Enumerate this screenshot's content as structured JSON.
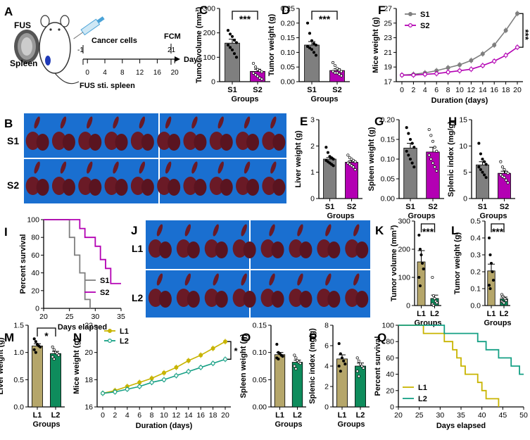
{
  "panel_letters": [
    "A",
    "B",
    "C",
    "D",
    "E",
    "F",
    "G",
    "H",
    "I",
    "J",
    "K",
    "L",
    "M",
    "N",
    "O",
    "P",
    "Q"
  ],
  "colors": {
    "S1": "#7f7f7f",
    "S2": "#b300b3",
    "L1": "#b5a66a",
    "L2": "#0e8c5c",
    "L1_line": "#c8b400",
    "L2_line": "#16a085",
    "photo_blue": "#1a6fd0",
    "organ": "#6a1a26"
  },
  "schematic": {
    "fus": "FUS",
    "spleen": "Spleen",
    "cancer_cells": "Cancer cells",
    "fcm": "FCM",
    "minus_one": "-1",
    "twenty_one": "21",
    "ticks": [
      "0",
      "4",
      "8",
      "12",
      "16",
      "20"
    ],
    "days": "Days",
    "fus_sti": "FUS sti. spleen"
  },
  "photos": {
    "row_labels_top": [
      "S1",
      "S2"
    ],
    "row_labels_bottom": [
      "L1",
      "L2"
    ]
  },
  "chart_data": [
    {
      "panel": "C",
      "type": "bar",
      "ylabel": "Tumor volume (mm³)",
      "xlabel": "Groups",
      "categories": [
        "S1",
        "S2"
      ],
      "values": [
        158,
        42
      ],
      "errors": [
        16,
        9
      ],
      "ylim": [
        0,
        300
      ],
      "yticks": [
        "0",
        "100",
        "200",
        "300"
      ],
      "significance": "***",
      "points": [
        [
          210,
          195,
          185,
          170,
          160,
          150,
          140,
          130,
          115,
          100
        ],
        [
          75,
          60,
          50,
          45,
          40,
          35,
          28,
          22,
          15,
          10
        ]
      ]
    },
    {
      "panel": "D",
      "type": "bar",
      "ylabel": "Tumor weight (g)",
      "xlabel": "Groups",
      "categories": [
        "S1",
        "S2"
      ],
      "values": [
        0.125,
        0.038
      ],
      "errors": [
        0.012,
        0.006
      ],
      "ylim": [
        0,
        0.25
      ],
      "yticks": [
        "0.00",
        "0.05",
        "0.10",
        "0.15",
        "0.20",
        "0.25"
      ],
      "significance": "***",
      "points": [
        [
          0.2,
          0.165,
          0.14,
          0.13,
          0.125,
          0.12,
          0.115,
          0.11,
          0.1,
          0.09
        ],
        [
          0.065,
          0.055,
          0.045,
          0.04,
          0.035,
          0.035,
          0.03,
          0.03,
          0.025,
          0.02
        ]
      ]
    },
    {
      "panel": "F",
      "type": "line",
      "ylabel": "Mice weight (g)",
      "xlabel": "Duration (days)",
      "x": [
        0,
        2,
        4,
        6,
        8,
        10,
        12,
        14,
        16,
        18,
        20
      ],
      "xticks": [
        "0",
        "2",
        "4",
        "6",
        "8",
        "10",
        "12",
        "14",
        "16",
        "18",
        "20"
      ],
      "ylim": [
        17,
        27
      ],
      "yticks": [
        "17",
        "19",
        "21",
        "23",
        "25",
        "27"
      ],
      "series": [
        {
          "name": "S1",
          "values": [
            17.9,
            18.0,
            18.2,
            18.5,
            18.9,
            19.3,
            19.9,
            20.8,
            22.0,
            24.0,
            26.3
          ]
        },
        {
          "name": "S2",
          "values": [
            17.9,
            17.9,
            18.0,
            18.1,
            18.3,
            18.5,
            18.7,
            19.2,
            19.8,
            20.6,
            21.7
          ]
        }
      ],
      "significance": "***"
    },
    {
      "panel": "E",
      "type": "bar",
      "ylabel": "Liver weight (g)",
      "xlabel": "Groups",
      "categories": [
        "S1",
        "S2"
      ],
      "values": [
        1.5,
        1.38
      ],
      "errors": [
        0.06,
        0.05
      ],
      "ylim": [
        0,
        3
      ],
      "yticks": [
        "0",
        "1",
        "2",
        "3"
      ],
      "points": [
        [
          1.95,
          1.75,
          1.6,
          1.55,
          1.5,
          1.45,
          1.4,
          1.35,
          1.3,
          1.25
        ],
        [
          1.65,
          1.55,
          1.5,
          1.45,
          1.4,
          1.35,
          1.3,
          1.25,
          1.2,
          1.1
        ]
      ]
    },
    {
      "panel": "G",
      "type": "bar",
      "ylabel": "Spleen weight (g)",
      "xlabel": "Groups",
      "categories": [
        "S1",
        "S2"
      ],
      "values": [
        0.128,
        0.118
      ],
      "errors": [
        0.012,
        0.012
      ],
      "ylim": [
        0,
        0.2
      ],
      "yticks": [
        "0.00",
        "0.05",
        "0.10",
        "0.15",
        "0.20"
      ],
      "points": [
        [
          0.18,
          0.165,
          0.15,
          0.14,
          0.13,
          0.12,
          0.11,
          0.1,
          0.09,
          0.08
        ],
        [
          0.175,
          0.16,
          0.145,
          0.13,
          0.12,
          0.11,
          0.1,
          0.09,
          0.08,
          0.07
        ]
      ]
    },
    {
      "panel": "H",
      "type": "bar",
      "ylabel": "Splenic index (mg/g)",
      "xlabel": "Groups",
      "categories": [
        "S1",
        "S2"
      ],
      "values": [
        6.4,
        4.8
      ],
      "errors": [
        0.6,
        0.4
      ],
      "ylim": [
        0,
        15
      ],
      "yticks": [
        "0",
        "5",
        "10",
        "15"
      ],
      "points": [
        [
          10.5,
          8.5,
          7.5,
          7,
          6.5,
          6,
          5.5,
          5,
          4.5,
          4
        ],
        [
          7,
          6,
          5.5,
          5,
          4.8,
          4.5,
          4.2,
          4,
          3.5,
          3
        ]
      ]
    },
    {
      "panel": "I",
      "type": "line",
      "subtype": "survival",
      "ylabel": "Percent survival",
      "xlabel": "Days elapsed",
      "xlim": [
        20,
        35
      ],
      "xticks": [
        "20",
        "25",
        "30",
        "35"
      ],
      "ylim": [
        0,
        100
      ],
      "yticks": [
        "0",
        "20",
        "40",
        "60",
        "80",
        "100"
      ],
      "series": [
        {
          "name": "S1",
          "steps": [
            [
              20,
              100
            ],
            [
              25,
              100
            ],
            [
              25,
              80
            ],
            [
              26,
              80
            ],
            [
              26,
              60
            ],
            [
              27,
              60
            ],
            [
              27,
              40
            ],
            [
              28,
              40
            ],
            [
              28,
              10
            ],
            [
              29,
              10
            ],
            [
              29,
              0
            ]
          ]
        },
        {
          "name": "S2",
          "steps": [
            [
              20,
              100
            ],
            [
              27,
              100
            ],
            [
              27,
              90
            ],
            [
              28,
              90
            ],
            [
              28,
              80
            ],
            [
              30,
              80
            ],
            [
              30,
              70
            ],
            [
              31,
              70
            ],
            [
              31,
              55
            ],
            [
              32,
              55
            ],
            [
              32,
              45
            ],
            [
              33,
              45
            ],
            [
              33,
              28
            ],
            [
              35,
              28
            ]
          ]
        }
      ]
    },
    {
      "panel": "K",
      "type": "bar",
      "ylabel": "Tumor volume (mm³)",
      "xlabel": "Groups",
      "categories": [
        "L1",
        "L2"
      ],
      "values": [
        155,
        25
      ],
      "errors": [
        40,
        12
      ],
      "ylim": [
        0,
        300
      ],
      "yticks": [
        "0",
        "100",
        "200",
        "300"
      ],
      "significance": "***",
      "points": [
        [
          250,
          200,
          180,
          150,
          130,
          100,
          70
        ],
        [
          100,
          35,
          25,
          15,
          10,
          5,
          0
        ]
      ]
    },
    {
      "panel": "L",
      "type": "bar",
      "ylabel": "Tumor weight (g)",
      "xlabel": "Groups",
      "categories": [
        "L1",
        "L2"
      ],
      "values": [
        0.205,
        0.04
      ],
      "errors": [
        0.04,
        0.01
      ],
      "ylim": [
        0,
        0.5
      ],
      "yticks": [
        "0.0",
        "0.1",
        "0.2",
        "0.3",
        "0.4",
        "0.5"
      ],
      "significance": "***",
      "points": [
        [
          0.4,
          0.3,
          0.25,
          0.2,
          0.15,
          0.12,
          0.1
        ],
        [
          0.065,
          0.055,
          0.045,
          0.04,
          0.03,
          0.025,
          0.02,
          0.015
        ]
      ]
    },
    {
      "panel": "M",
      "type": "bar",
      "ylabel": "Liver weight (g)",
      "xlabel": "Groups",
      "categories": [
        "L1",
        "L2"
      ],
      "values": [
        1.12,
        0.98
      ],
      "errors": [
        0.04,
        0.04
      ],
      "ylim": [
        0,
        1.5
      ],
      "yticks": [
        "0.0",
        "0.5",
        "1.0",
        "1.5"
      ],
      "significance": "*",
      "points": [
        [
          1.25,
          1.2,
          1.15,
          1.12,
          1.1,
          1.05,
          1.0
        ],
        [
          1.1,
          1.05,
          1.0,
          0.98,
          0.95,
          0.92,
          0.88
        ]
      ]
    },
    {
      "panel": "N",
      "type": "line",
      "ylabel": "Mice weight (g)",
      "xlabel": "Duration (days)",
      "x": [
        0,
        2,
        4,
        6,
        8,
        10,
        12,
        14,
        16,
        18,
        20
      ],
      "xticks": [
        "0",
        "2",
        "4",
        "6",
        "8",
        "10",
        "12",
        "14",
        "16",
        "18",
        "20"
      ],
      "ylim": [
        16,
        22
      ],
      "yticks": [
        "16",
        "18",
        "20",
        "22"
      ],
      "series": [
        {
          "name": "L1",
          "values": [
            17.0,
            17.2,
            17.5,
            17.8,
            18.1,
            18.5,
            18.9,
            19.4,
            19.8,
            20.3,
            20.8
          ]
        },
        {
          "name": "L2",
          "values": [
            17.0,
            17.1,
            17.3,
            17.5,
            17.8,
            18.0,
            18.3,
            18.6,
            18.9,
            19.2,
            19.5
          ]
        }
      ],
      "significance": "*"
    },
    {
      "panel": "O",
      "type": "bar",
      "ylabel": "Spleen weight (g)",
      "xlabel": "Groups",
      "categories": [
        "L1",
        "L2"
      ],
      "values": [
        0.096,
        0.082
      ],
      "errors": [
        0.004,
        0.004
      ],
      "ylim": [
        0,
        0.15
      ],
      "yticks": [
        "0.00",
        "0.05",
        "0.10",
        "0.15"
      ],
      "points": [
        [
          0.115,
          0.1,
          0.098,
          0.095,
          0.093,
          0.09,
          0.088
        ],
        [
          0.095,
          0.09,
          0.085,
          0.082,
          0.08,
          0.075,
          0.07
        ]
      ]
    },
    {
      "panel": "P",
      "type": "bar",
      "ylabel": "Splenic index (mg/g)",
      "xlabel": "Groups",
      "categories": [
        "L1",
        "L2"
      ],
      "values": [
        4.7,
        4.0
      ],
      "errors": [
        0.4,
        0.3
      ],
      "ylim": [
        0,
        8
      ],
      "yticks": [
        "0",
        "2",
        "4",
        "6",
        "8"
      ],
      "points": [
        [
          6.2,
          5.2,
          4.8,
          4.5,
          4.2,
          4.0,
          3.5
        ],
        [
          4.8,
          4.5,
          4.2,
          4.0,
          3.8,
          3.5,
          3.0
        ]
      ]
    },
    {
      "panel": "Q",
      "type": "line",
      "subtype": "survival",
      "ylabel": "Percent survival",
      "xlabel": "Days elapsed",
      "xlim": [
        20,
        50
      ],
      "xticks": [
        "20",
        "25",
        "30",
        "35",
        "40",
        "45",
        "50"
      ],
      "ylim": [
        0,
        100
      ],
      "yticks": [
        "0",
        "20",
        "40",
        "60",
        "80",
        "100"
      ],
      "series": [
        {
          "name": "L1",
          "steps": [
            [
              20,
              100
            ],
            [
              26,
              100
            ],
            [
              26,
              90
            ],
            [
              31,
              90
            ],
            [
              31,
              80
            ],
            [
              33,
              80
            ],
            [
              33,
              70
            ],
            [
              34,
              70
            ],
            [
              34,
              60
            ],
            [
              35,
              60
            ],
            [
              35,
              50
            ],
            [
              36,
              50
            ],
            [
              36,
              40
            ],
            [
              39,
              40
            ],
            [
              39,
              30
            ],
            [
              40,
              30
            ],
            [
              40,
              20
            ],
            [
              41,
              20
            ],
            [
              41,
              10
            ],
            [
              44,
              10
            ],
            [
              44,
              0
            ]
          ]
        },
        {
          "name": "L2",
          "steps": [
            [
              20,
              100
            ],
            [
              31,
              100
            ],
            [
              31,
              90
            ],
            [
              39,
              90
            ],
            [
              39,
              80
            ],
            [
              41,
              80
            ],
            [
              41,
              70
            ],
            [
              44,
              70
            ],
            [
              44,
              60
            ],
            [
              47,
              60
            ],
            [
              47,
              50
            ],
            [
              49,
              50
            ],
            [
              49,
              40
            ],
            [
              50,
              40
            ]
          ]
        }
      ]
    }
  ]
}
